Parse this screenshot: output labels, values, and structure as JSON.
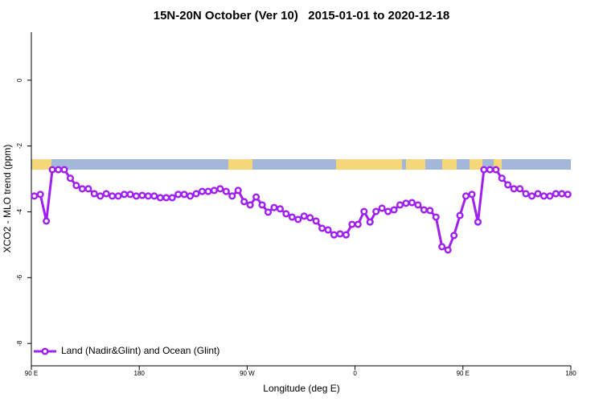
{
  "chart_data": {
    "type": "line",
    "title": "15N-20N October (Ver 10)   2015-01-01 to 2020-12-18",
    "xlabel": "Longitude (deg E)",
    "ylabel": "XCO2 - MLO trend (ppm)",
    "xlim": [
      90,
      540
    ],
    "ylim": [
      -8.68,
      1.46
    ],
    "xticks": [
      {
        "value": 90,
        "label": "90 E"
      },
      180,
      {
        "value": 270,
        "label": "90 W"
      },
      {
        "value": 360,
        "label": "0"
      },
      {
        "value": 450,
        "label": "90 E"
      },
      {
        "value": 540,
        "label": "180"
      }
    ],
    "yticks": [
      -8,
      -6,
      -4,
      -2,
      0
    ],
    "legend": "bottom-left",
    "x": [
      92.5,
      97.5,
      102.5,
      107.5,
      112.5,
      117.5,
      122.5,
      127.5,
      132.5,
      137.5,
      142.5,
      147.5,
      152.5,
      157.5,
      162.5,
      167.5,
      172.5,
      177.5,
      182.5,
      187.5,
      192.5,
      197.5,
      202.5,
      207.5,
      212.5,
      217.5,
      222.5,
      227.5,
      232.5,
      237.5,
      242.5,
      247.5,
      252.5,
      257.5,
      262.5,
      267.5,
      272.5,
      277.5,
      282.5,
      287.5,
      292.5,
      297.5,
      302.5,
      307.5,
      312.5,
      317.5,
      322.5,
      327.5,
      332.5,
      337.5,
      342.5,
      347.5,
      352.5,
      357.5,
      362.5,
      367.5,
      372.5,
      377.5,
      382.5,
      387.5,
      392.5,
      397.5,
      402.5,
      407.5,
      412.5,
      417.5,
      422.5,
      427.5,
      432.5,
      437.5,
      442.5,
      447.5,
      452.5,
      457.5,
      462.5,
      467.5,
      472.5,
      477.5,
      482.5,
      487.5,
      492.5,
      497.5,
      502.5,
      507.5,
      512.5,
      517.5,
      522.5,
      527.5,
      532.5,
      537.5
    ],
    "series": [
      {
        "name": "Land (Nadir&Glint) and Ocean (Glint)",
        "color": "#a020f0",
        "values": [
          -3.52,
          -3.47,
          -4.28,
          -2.72,
          -2.72,
          -2.72,
          -2.98,
          -3.2,
          -3.3,
          -3.3,
          -3.45,
          -3.52,
          -3.45,
          -3.52,
          -3.52,
          -3.47,
          -3.47,
          -3.52,
          -3.5,
          -3.52,
          -3.52,
          -3.57,
          -3.57,
          -3.57,
          -3.47,
          -3.47,
          -3.52,
          -3.45,
          -3.38,
          -3.38,
          -3.35,
          -3.3,
          -3.38,
          -3.52,
          -3.35,
          -3.69,
          -3.79,
          -3.55,
          -3.79,
          -4.01,
          -3.87,
          -3.91,
          -4.06,
          -4.16,
          -4.23,
          -4.13,
          -4.18,
          -4.28,
          -4.5,
          -4.55,
          -4.7,
          -4.67,
          -4.7,
          -4.38,
          -4.38,
          -3.99,
          -4.31,
          -3.99,
          -3.89,
          -3.99,
          -3.94,
          -3.79,
          -3.74,
          -3.72,
          -3.79,
          -3.94,
          -3.96,
          -4.16,
          -5.06,
          -5.16,
          -4.72,
          -4.11,
          -3.52,
          -3.47,
          -4.31,
          -2.72,
          -2.72,
          -2.72,
          -2.98,
          -3.18,
          -3.3,
          -3.3,
          -3.45,
          -3.52,
          -3.45,
          -3.52,
          -3.52,
          -3.45,
          -3.45,
          -3.47
        ]
      }
    ]
  }
}
